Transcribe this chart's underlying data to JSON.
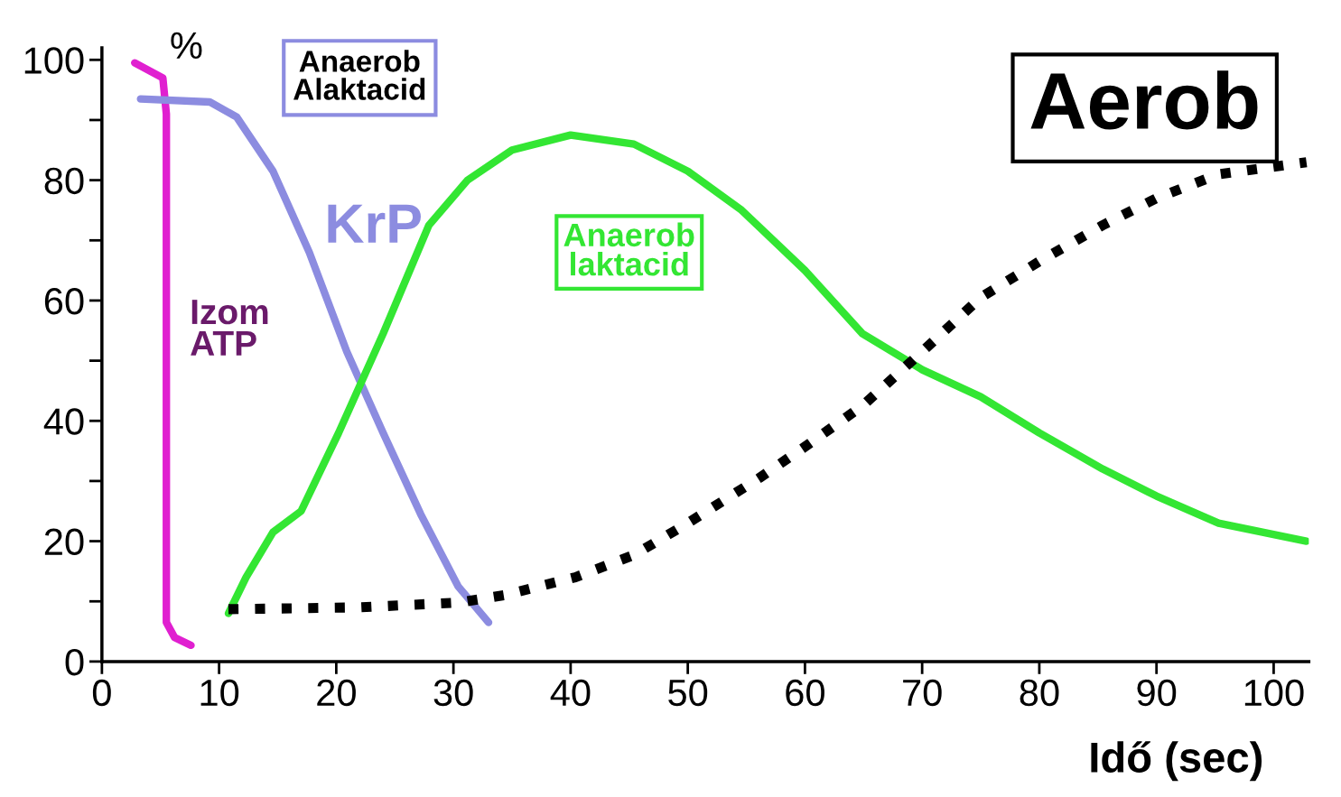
{
  "chart_data": {
    "type": "line",
    "ylabel": "%",
    "xlabel": "Idő (sec)",
    "xlim": [
      0,
      103
    ],
    "ylim": [
      0,
      102
    ],
    "xticks": [
      0,
      10,
      20,
      30,
      40,
      50,
      60,
      70,
      80,
      90,
      100
    ],
    "yticks": [
      0,
      {
        "value": 10,
        "label": null
      },
      20,
      {
        "value": 30,
        "label": null
      },
      40,
      {
        "value": 50,
        "label": null
      },
      60,
      {
        "value": 70,
        "label": null
      },
      80,
      {
        "value": 90,
        "label": null
      },
      100
    ],
    "grid": false,
    "legend": false,
    "marker": "none",
    "annotations": [
      "Anaerob\nAlaktacid"
    ],
    "series": [
      {
        "name": "Izom\nATP",
        "color": "#e020d0",
        "line_style": "solid",
        "x": [
          2.8,
          5.2,
          5.5,
          5.5,
          6.2,
          7.6
        ],
        "values": [
          99.5,
          97,
          91,
          6.5,
          4,
          2.7
        ]
      },
      {
        "name": "KrP",
        "color": "#8c8ce0",
        "line_style": "solid",
        "x": [
          3.3,
          9.2,
          11.5,
          14.6,
          17.7,
          20.9,
          24,
          27.2,
          30.4,
          33
        ],
        "values": [
          93.5,
          93,
          90.5,
          81.5,
          68,
          51.5,
          38,
          24.5,
          12.5,
          6.5
        ]
      },
      {
        "name": "Anaerob\nlaktacid",
        "color": "#33e633",
        "line_style": "solid",
        "x": [
          10.8,
          12.3,
          14.6,
          17,
          20.2,
          24,
          27.9,
          31.2,
          35,
          40,
          45.4,
          50,
          54.6,
          60,
          64.9,
          70,
          75,
          80,
          85.4,
          90,
          95.3,
          102.8
        ],
        "values": [
          8,
          14,
          21.5,
          25,
          38,
          54.5,
          72.5,
          80,
          85,
          87.5,
          86,
          81.5,
          75,
          65,
          54.5,
          48.5,
          44,
          38,
          32,
          27.5,
          23,
          20
        ]
      },
      {
        "name": "Aerob",
        "color": "#000000",
        "line_style": "dotted",
        "x": [
          10.8,
          22,
          30.4,
          34.3,
          40.4,
          45.4,
          50,
          56.1,
          60,
          64.9,
          70,
          75,
          80,
          85.4,
          90,
          95.3,
          102.8
        ],
        "values": [
          8.7,
          9,
          9.8,
          11,
          14,
          17.7,
          23,
          30.5,
          35.7,
          42.5,
          51.5,
          60.5,
          66.5,
          72.5,
          77,
          81,
          83
        ]
      }
    ]
  }
}
